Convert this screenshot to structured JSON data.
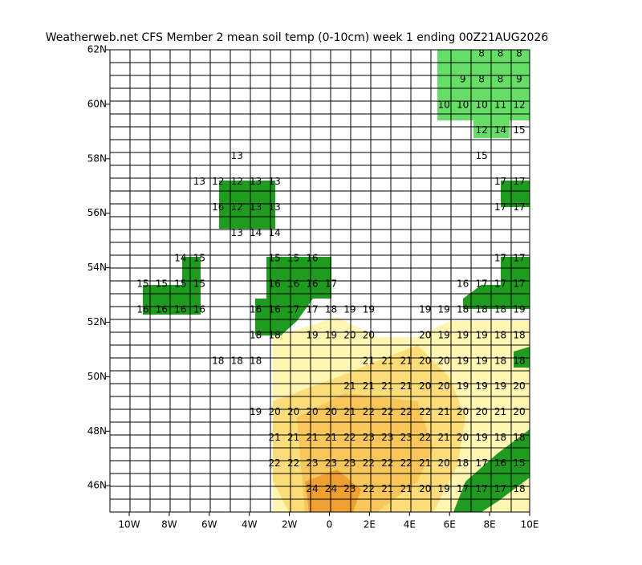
{
  "title": "Weatherweb.net CFS Member 2 mean soil temp (0-10cm) week 1 ending 00Z21AUG2026",
  "map": {
    "x_labels": [
      "10W",
      "8W",
      "6W",
      "4W",
      "2W",
      "0",
      "2E",
      "4E",
      "6E",
      "8E",
      "10E"
    ],
    "y_labels": [
      "62N",
      "60N",
      "58N",
      "56N",
      "54N",
      "52N",
      "50N",
      "48N",
      "46N"
    ],
    "rows": [
      [
        null,
        null,
        null,
        null,
        null,
        null,
        null,
        null,
        null,
        null,
        null,
        null,
        null,
        null,
        null,
        null,
        null,
        null,
        8,
        8,
        8
      ],
      [
        null,
        null,
        null,
        null,
        null,
        null,
        null,
        null,
        null,
        null,
        null,
        null,
        null,
        null,
        null,
        null,
        null,
        9,
        8,
        8,
        9
      ],
      [
        null,
        null,
        null,
        null,
        null,
        null,
        null,
        null,
        null,
        null,
        null,
        null,
        null,
        null,
        null,
        null,
        10,
        10,
        10,
        11,
        12
      ],
      [
        null,
        null,
        null,
        null,
        null,
        null,
        null,
        null,
        null,
        null,
        null,
        null,
        null,
        null,
        null,
        null,
        null,
        null,
        12,
        14,
        15
      ],
      [
        null,
        null,
        null,
        null,
        null,
        13,
        null,
        null,
        null,
        null,
        null,
        null,
        null,
        null,
        null,
        null,
        null,
        null,
        15,
        null,
        null
      ],
      [
        null,
        null,
        null,
        13,
        12,
        12,
        13,
        13,
        null,
        null,
        null,
        null,
        null,
        null,
        null,
        null,
        null,
        null,
        null,
        17,
        17
      ],
      [
        null,
        null,
        null,
        null,
        16,
        12,
        13,
        13,
        null,
        null,
        null,
        null,
        null,
        null,
        null,
        null,
        null,
        null,
        null,
        17,
        17
      ],
      [
        null,
        null,
        null,
        null,
        null,
        13,
        14,
        14,
        null,
        null,
        null,
        null,
        null,
        null,
        null,
        null,
        null,
        null,
        null,
        null,
        null
      ],
      [
        null,
        null,
        14,
        15,
        null,
        null,
        null,
        15,
        15,
        16,
        null,
        null,
        null,
        null,
        null,
        null,
        null,
        null,
        null,
        17,
        17
      ],
      [
        15,
        15,
        15,
        15,
        null,
        null,
        null,
        16,
        16,
        16,
        17,
        null,
        null,
        null,
        null,
        null,
        null,
        16,
        17,
        17,
        17
      ],
      [
        16,
        16,
        16,
        16,
        null,
        null,
        16,
        16,
        17,
        17,
        18,
        19,
        19,
        null,
        null,
        19,
        19,
        18,
        18,
        18,
        19
      ],
      [
        null,
        null,
        null,
        null,
        null,
        null,
        18,
        18,
        null,
        19,
        19,
        20,
        20,
        null,
        null,
        20,
        19,
        19,
        19,
        18,
        18
      ],
      [
        null,
        null,
        null,
        null,
        18,
        18,
        18,
        null,
        null,
        null,
        null,
        null,
        21,
        21,
        21,
        20,
        20,
        19,
        19,
        18,
        18
      ],
      [
        null,
        null,
        null,
        null,
        null,
        null,
        null,
        null,
        null,
        null,
        null,
        21,
        21,
        21,
        21,
        20,
        20,
        19,
        19,
        19,
        20
      ],
      [
        null,
        null,
        null,
        null,
        null,
        null,
        19,
        20,
        20,
        20,
        20,
        21,
        22,
        22,
        22,
        22,
        21,
        20,
        20,
        21,
        20
      ],
      [
        null,
        null,
        null,
        null,
        null,
        null,
        null,
        21,
        21,
        21,
        21,
        22,
        23,
        23,
        23,
        22,
        21,
        20,
        19,
        18,
        18
      ],
      [
        null,
        null,
        null,
        null,
        null,
        null,
        null,
        22,
        22,
        23,
        23,
        23,
        22,
        22,
        22,
        21,
        20,
        18,
        17,
        16,
        15
      ],
      [
        null,
        null,
        null,
        null,
        null,
        null,
        null,
        null,
        null,
        24,
        24,
        23,
        22,
        21,
        21,
        20,
        19,
        17,
        17,
        17,
        18
      ]
    ]
  }
}
